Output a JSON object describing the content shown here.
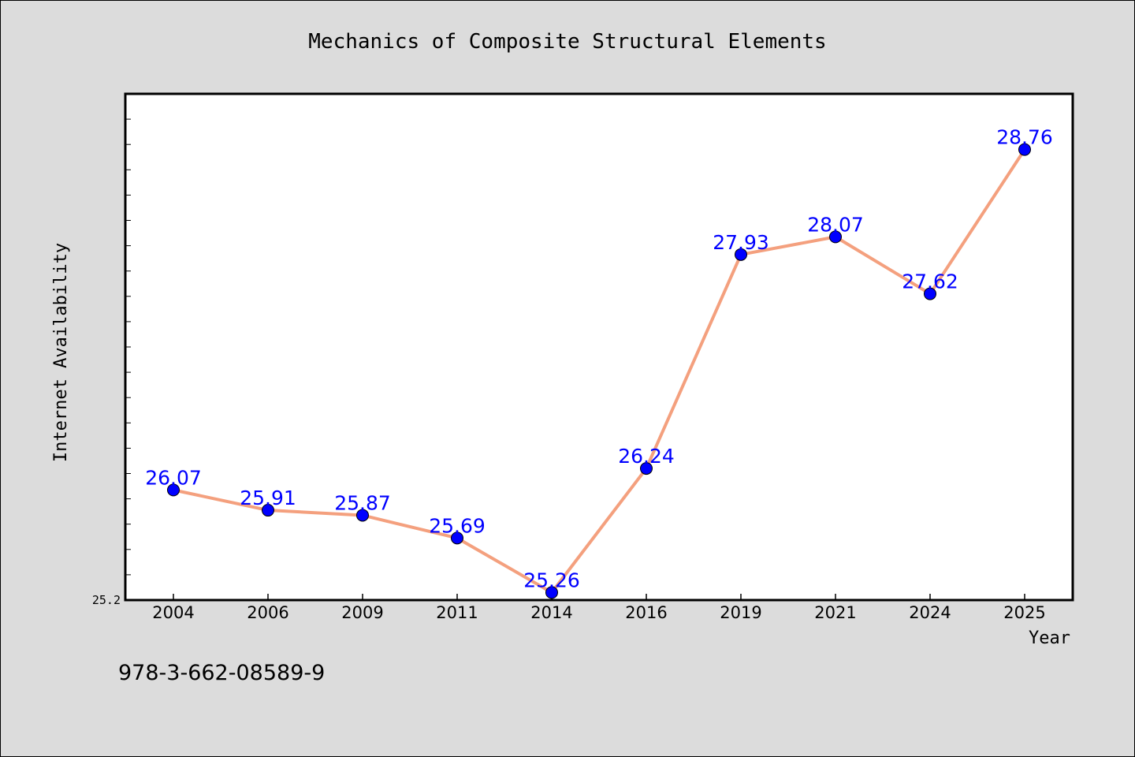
{
  "chart_data": {
    "type": "line",
    "title": "Mechanics of Composite Structural Elements",
    "xlabel": "Year",
    "ylabel": "Internet Availability",
    "categories": [
      "2004",
      "2006",
      "2009",
      "2011",
      "2014",
      "2016",
      "2019",
      "2021",
      "2024",
      "2025"
    ],
    "series": [
      {
        "values": [
          26.07,
          25.91,
          25.87,
          25.69,
          25.26,
          26.24,
          27.93,
          28.07,
          27.62,
          28.76
        ]
      }
    ],
    "data_labels": [
      "26.07",
      "25.91",
      "25.87",
      "25.69",
      "25.26",
      "26.24",
      "27.93",
      "28.07",
      "27.62",
      "28.76"
    ],
    "ylim": [
      25.2,
      29.2
    ],
    "yticks_labeled": [
      "25.2"
    ],
    "grid": false,
    "legend": "none",
    "colors": {
      "line": "#f4a07e",
      "marker": "#0000ff",
      "marker_edge": "#000000",
      "data_label": "#0000ff",
      "plot_bg": "#ffffff",
      "figure_bg": "#dcdcdc"
    }
  },
  "caption": "978-3-662-08589-9"
}
